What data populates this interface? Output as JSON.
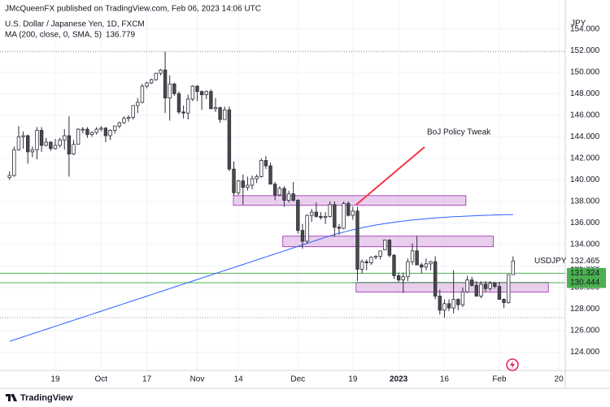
{
  "header": {
    "publisher": "JMcQueenFX published on TradingView.com, Feb 06, 2023 14:06 UTC"
  },
  "chart_data": {
    "type": "candlestick",
    "title": "U.S. Dollar / Japanese Yen, 1D, FXCM",
    "symbol": "USDJPY",
    "currency": "JPY",
    "indicator": {
      "name": "MA (200, close, 0, SMA, 5)",
      "color": "#2962ff",
      "values": [
        125,
        125.14,
        125.28,
        125.42,
        125.56,
        125.7,
        125.84,
        125.98,
        126.12,
        126.26,
        126.4,
        126.54,
        126.68,
        126.82,
        126.96,
        127.1,
        127.24,
        127.38,
        127.52,
        127.66,
        127.8,
        127.94,
        128.08,
        128.22,
        128.36,
        128.5,
        128.64,
        128.78,
        128.92,
        129.06,
        129.2,
        129.34,
        129.48,
        129.62,
        129.76,
        129.9,
        130.04,
        130.18,
        130.32,
        130.46,
        130.6,
        130.74,
        130.88,
        131.02,
        131.16,
        131.3,
        131.44,
        131.58,
        131.72,
        131.86,
        132,
        132.14,
        132.28,
        132.42,
        132.56,
        132.7,
        132.84,
        132.98,
        133.12,
        133.26,
        133.4,
        133.54,
        133.68,
        133.82,
        133.96,
        134.1,
        134.24,
        134.38,
        134.52,
        134.66,
        134.8,
        134.92,
        135.04,
        135.15,
        135.26,
        135.36,
        135.46,
        135.55,
        135.64,
        135.72,
        135.8,
        135.87,
        135.94,
        136,
        136.06,
        136.12,
        136.17,
        136.22,
        136.27,
        136.31,
        136.35,
        136.39,
        136.43,
        136.46,
        136.49,
        136.52,
        136.55,
        136.57,
        136.59,
        136.61,
        136.63,
        136.65,
        136.67,
        136.69,
        136.71,
        136.72,
        136.74,
        136.75,
        136.76,
        136.77,
        136.779
      ]
    },
    "open": [
      140.2,
      140.4,
      142.8,
      144.0,
      144.1,
      142.6,
      142.8,
      144.6,
      143.2,
      143.5,
      142.9,
      143.2,
      143.7,
      144.1,
      142.4,
      143.3,
      144.7,
      144.7,
      144.2,
      144.4,
      144.7,
      144.8,
      144.1,
      144.6,
      145.0,
      145.3,
      145.7,
      145.8,
      146.9,
      147.2,
      148.7,
      149.0,
      149.3,
      149.9,
      150.2,
      147.6,
      148.9,
      148.0,
      146.3,
      146.2,
      147.5,
      148.7,
      148.2,
      147.9,
      148.2,
      146.6,
      146.7,
      145.6,
      146.5,
      141.0,
      138.8,
      139.9,
      139.3,
      139.5,
      140.1,
      140.3,
      141.8,
      141.3,
      139.6,
      138.6,
      139.2,
      138.1,
      138.7,
      138.1,
      135.3,
      134.3,
      136.7,
      137.0,
      136.6,
      136.5,
      136.6,
      137.7,
      135.6,
      135.5,
      137.8,
      136.7,
      137.1,
      131.7,
      132.4,
      132.3,
      132.8,
      132.9,
      133.5,
      134.4,
      133.0,
      131.1,
      130.7,
      131.0,
      132.4,
      133.4,
      132.1,
      131.9,
      132.2,
      132.4,
      129.2,
      127.9,
      128.5,
      128.1,
      128.9,
      128.4,
      129.6,
      130.7,
      130.2,
      129.2,
      130.3,
      129.9,
      130.4,
      130.1,
      128.9,
      128.6,
      131.2
    ],
    "high": [
      140.8,
      143.1,
      145.0,
      144.5,
      144.2,
      143.1,
      144.9,
      144.9,
      143.9,
      143.6,
      143.8,
      143.9,
      144.7,
      145.9,
      143.7,
      144.8,
      144.9,
      144.9,
      144.5,
      144.9,
      145.0,
      144.9,
      144.7,
      145.0,
      145.4,
      145.9,
      146.0,
      146.9,
      147.6,
      148.9,
      149.1,
      149.4,
      149.9,
      150.3,
      151.9,
      149.7,
      149.0,
      148.2,
      146.9,
      147.9,
      148.8,
      148.8,
      148.3,
      148.3,
      148.4,
      147.6,
      146.8,
      146.8,
      146.8,
      141.7,
      140.0,
      140.5,
      140.3,
      140.4,
      140.5,
      142.0,
      142.2,
      141.6,
      139.8,
      139.4,
      139.4,
      139.0,
      139.8,
      138.2,
      135.9,
      136.8,
      137.3,
      137.9,
      137.0,
      137.0,
      138.0,
      138.0,
      135.9,
      138.0,
      138.0,
      137.5,
      137.5,
      132.6,
      132.6,
      132.9,
      133.0,
      133.4,
      134.4,
      134.5,
      133.1,
      131.4,
      131.4,
      132.7,
      134.1,
      134.8,
      132.3,
      132.7,
      132.5,
      132.9,
      129.8,
      128.9,
      128.9,
      131.6,
      129.0,
      130.0,
      131.1,
      131.0,
      130.6,
      130.6,
      130.6,
      130.6,
      130.5,
      130.5,
      129.0,
      131.2,
      132.9
    ],
    "low": [
      140.0,
      140.3,
      142.7,
      142.9,
      141.5,
      142.1,
      141.9,
      142.6,
      143.1,
      142.7,
      142.8,
      143.0,
      142.8,
      140.3,
      142.3,
      143.3,
      144.3,
      143.9,
      144.0,
      144.2,
      144.5,
      143.5,
      143.7,
      144.3,
      144.8,
      145.2,
      145.4,
      145.6,
      146.2,
      147.1,
      148.5,
      148.9,
      149.2,
      149.7,
      146.2,
      145.5,
      147.8,
      146.1,
      145.7,
      145.6,
      147.3,
      147.3,
      146.5,
      147.5,
      146.6,
      146.3,
      145.3,
      145.6,
      140.8,
      138.5,
      138.6,
      137.7,
      139.0,
      139.1,
      139.7,
      140.2,
      141.0,
      139.6,
      138.1,
      138.5,
      137.5,
      137.9,
      138.0,
      135.0,
      133.6,
      134.1,
      136.1,
      136.5,
      136.3,
      135.9,
      136.5,
      134.7,
      134.9,
      135.4,
      136.6,
      136.3,
      130.6,
      131.3,
      131.6,
      132.1,
      132.6,
      132.6,
      133.5,
      132.8,
      130.8,
      130.5,
      129.5,
      130.6,
      132.1,
      132.1,
      131.3,
      131.6,
      131.6,
      128.9,
      127.5,
      127.2,
      127.8,
      127.6,
      127.9,
      128.2,
      129.5,
      130.1,
      129.2,
      129.0,
      129.6,
      129.7,
      129.9,
      128.9,
      128.1,
      128.5,
      131.2
    ],
    "close": [
      140.4,
      142.8,
      144.0,
      144.1,
      142.6,
      142.8,
      144.6,
      143.2,
      143.5,
      142.9,
      143.2,
      143.7,
      144.1,
      142.4,
      143.3,
      144.7,
      144.7,
      144.2,
      144.4,
      144.7,
      144.8,
      144.1,
      144.6,
      145.0,
      145.3,
      145.7,
      145.8,
      146.9,
      147.2,
      148.7,
      149.0,
      149.3,
      149.9,
      150.2,
      147.6,
      148.9,
      148.0,
      146.3,
      146.2,
      147.5,
      148.7,
      148.2,
      147.9,
      148.2,
      146.6,
      146.7,
      145.6,
      146.5,
      141.0,
      138.8,
      139.9,
      139.3,
      139.5,
      140.1,
      140.3,
      141.8,
      141.3,
      139.6,
      138.6,
      139.2,
      138.1,
      138.7,
      138.1,
      135.3,
      134.3,
      136.7,
      137.0,
      136.6,
      136.5,
      136.6,
      137.7,
      135.6,
      135.5,
      137.8,
      136.7,
      137.1,
      131.7,
      132.4,
      132.3,
      132.8,
      132.9,
      133.4,
      134.4,
      133.0,
      131.1,
      130.7,
      131.0,
      132.4,
      133.4,
      132.1,
      131.9,
      132.2,
      132.4,
      129.2,
      127.9,
      128.5,
      128.1,
      128.9,
      128.4,
      129.6,
      130.7,
      130.2,
      129.2,
      130.3,
      129.9,
      130.4,
      130.1,
      128.9,
      128.6,
      131.2,
      132.465
    ],
    "up_color": "#ffffff",
    "down_color": "#4a4a4a",
    "outline_color": "#2a2e39",
    "xlim": [
      -2.08,
      121.4
    ],
    "xticks": [
      {
        "value": 10,
        "label": "19"
      },
      {
        "value": 20,
        "label": "Oct"
      },
      {
        "value": 30,
        "label": "17"
      },
      {
        "value": 41,
        "label": "Nov"
      },
      {
        "value": 50,
        "label": "14"
      },
      {
        "value": 63,
        "label": "Dec"
      },
      {
        "value": 75,
        "label": "19"
      },
      {
        "value": 85,
        "label": "2023"
      },
      {
        "value": 95,
        "label": "16"
      },
      {
        "value": 107,
        "label": "Feb"
      },
      {
        "value": 120,
        "label": "20"
      }
    ],
    "ylim": [
      122.3,
      156.7
    ],
    "yticks": [
      {
        "value": 124,
        "label": "124.000"
      },
      {
        "value": 126,
        "label": "126.000"
      },
      {
        "value": 128,
        "label": "128.000"
      },
      {
        "value": 130,
        "label": "130.000"
      },
      {
        "value": 132,
        "label": "132.000"
      },
      {
        "value": 134,
        "label": "134.000"
      },
      {
        "value": 136,
        "label": "136.000"
      },
      {
        "value": 138,
        "label": "138.000"
      },
      {
        "value": 140,
        "label": "140.000"
      },
      {
        "value": 142,
        "label": "142.000"
      },
      {
        "value": 144,
        "label": "144.000"
      },
      {
        "value": 146,
        "label": "146.000"
      },
      {
        "value": 148,
        "label": "148.000"
      },
      {
        "value": 150,
        "label": "150.000"
      },
      {
        "value": 152,
        "label": "152.000"
      },
      {
        "value": 154,
        "label": "154.000"
      }
    ],
    "grid": true,
    "levels": {
      "color": "#4caf50",
      "values": [
        131.324,
        130.444
      ]
    },
    "zones": {
      "color": "#e1bee7",
      "border": "#9c27b0",
      "items": [
        {
          "top": 138.53,
          "bottom": 137.63
        },
        {
          "top": 134.77,
          "bottom": 133.79
        },
        {
          "top": 130.48,
          "bottom": 129.58
        }
      ]
    },
    "annotation": {
      "text": "BoJ Policy Tweak",
      "color": "#f23645"
    }
  },
  "footer": {
    "brand": "TradingView"
  }
}
